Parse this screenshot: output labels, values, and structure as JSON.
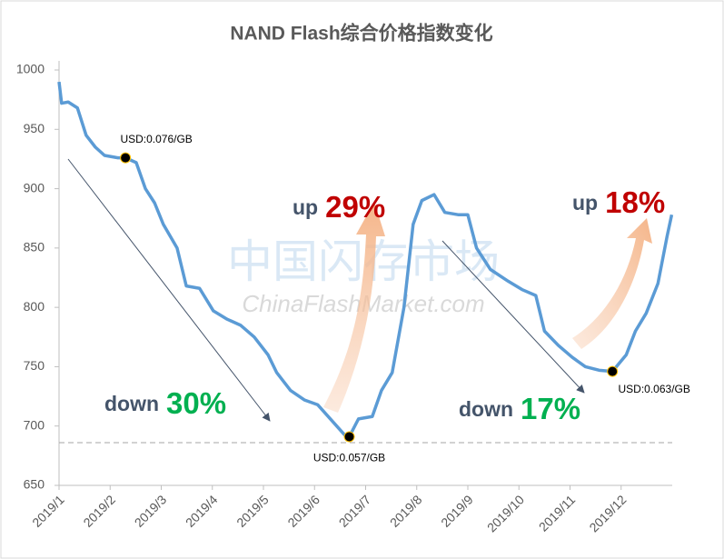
{
  "chart_data": {
    "type": "line",
    "title": "NAND Flash综合价格指数变化",
    "xlim": [
      0,
      12
    ],
    "xticks": [
      {
        "value": 0,
        "label": "2019/1"
      },
      {
        "value": 1,
        "label": "2019/2"
      },
      {
        "value": 2,
        "label": "2019/3"
      },
      {
        "value": 3,
        "label": "2019/4"
      },
      {
        "value": 4,
        "label": "2019/5"
      },
      {
        "value": 5,
        "label": "2019/6"
      },
      {
        "value": 6,
        "label": "2019/7"
      },
      {
        "value": 7,
        "label": "2019/8"
      },
      {
        "value": 8,
        "label": "2019/9"
      },
      {
        "value": 9,
        "label": "2019/10"
      },
      {
        "value": 10,
        "label": "2019/11"
      },
      {
        "value": 11,
        "label": "2019/12"
      }
    ],
    "ylim": [
      650,
      1000
    ],
    "yticks": [
      650,
      700,
      750,
      800,
      850,
      900,
      950,
      1000
    ],
    "x": [
      0,
      0.05,
      0.18,
      0.36,
      0.53,
      0.71,
      0.89,
      1.15,
      1.3,
      1.51,
      1.69,
      1.87,
      2.04,
      2.31,
      2.49,
      2.75,
      3.02,
      3.29,
      3.55,
      3.82,
      4.09,
      4.26,
      4.53,
      4.8,
      5.06,
      5.33,
      5.6,
      5.68,
      5.86,
      6.13,
      6.31,
      6.52,
      6.75,
      6.93,
      7.1,
      7.34,
      7.55,
      7.82,
      8.0,
      8.17,
      8.44,
      8.79,
      9.06,
      9.33,
      9.5,
      9.77,
      10.04,
      10.3,
      10.57,
      10.83,
      11.1,
      11.28,
      11.49,
      11.72,
      11.9,
      11.99
    ],
    "series": [
      {
        "color": "#5b9bd5",
        "values": [
          990,
          972,
          973,
          968,
          945,
          935,
          928,
          926,
          926,
          922,
          900,
          888,
          870,
          850,
          818,
          816,
          797,
          790,
          785,
          775,
          760,
          745,
          730,
          722,
          718,
          705,
          692,
          691,
          706,
          708,
          730,
          745,
          800,
          870,
          890,
          895,
          880,
          878,
          878,
          850,
          832,
          822,
          815,
          810,
          780,
          768,
          758,
          750,
          747,
          746,
          760,
          780,
          795,
          820,
          860,
          878
        ]
      }
    ],
    "reference_line": 686,
    "points": [
      {
        "x": 1.3,
        "y": 926,
        "label": "USD:0.076/GB"
      },
      {
        "x": 5.68,
        "y": 691,
        "label": "USD:0.057/GB"
      },
      {
        "x": 10.83,
        "y": 746,
        "label": "USD:0.063/GB"
      }
    ],
    "trends": [
      {
        "word": "down",
        "change": "30%",
        "color": "#00b050"
      },
      {
        "word": "up",
        "change": "29%",
        "color": "#c00000"
      },
      {
        "word": "down",
        "change": "17%",
        "color": "#00b050"
      },
      {
        "word": "up",
        "change": "18%",
        "color": "#c00000"
      }
    ],
    "watermark": [
      "中国闪存市场",
      "ChinaFlashMarket.com"
    ]
  }
}
